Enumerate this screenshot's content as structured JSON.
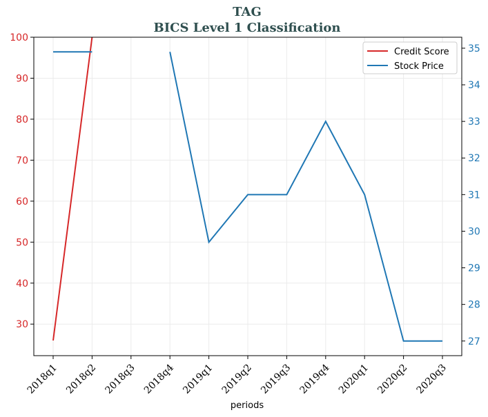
{
  "chart_data": {
    "type": "line",
    "title": "TAG",
    "subtitle": "BICS Level 1 Classification",
    "xlabel": "periods",
    "categories": [
      "2018q1",
      "2018q2",
      "2018q3",
      "2018q4",
      "2019q1",
      "2019q2",
      "2019q3",
      "2019q4",
      "2020q1",
      "2020q2",
      "2020q3"
    ],
    "left_axis": {
      "ylim": [
        22.3,
        100
      ],
      "ticks": [
        30,
        40,
        50,
        60,
        70,
        80,
        90,
        100
      ],
      "color": "#d62728"
    },
    "right_axis": {
      "ylim": [
        26.6,
        35.3
      ],
      "ticks": [
        27,
        28,
        29,
        30,
        31,
        32,
        33,
        34,
        35
      ],
      "color": "#1f77b4"
    },
    "series": [
      {
        "name": "Credit Score",
        "axis": "left",
        "color": "#d62728",
        "values": [
          26,
          100,
          null,
          null,
          null,
          null,
          null,
          null,
          null,
          null,
          null
        ]
      },
      {
        "name": "Stock Price",
        "axis": "right",
        "color": "#1f77b4",
        "values": [
          34.9,
          34.9,
          null,
          34.9,
          29.7,
          31.0,
          31.0,
          33.0,
          31.0,
          27.0,
          27.0
        ]
      }
    ],
    "grid": true,
    "legend_position": "top-right"
  }
}
